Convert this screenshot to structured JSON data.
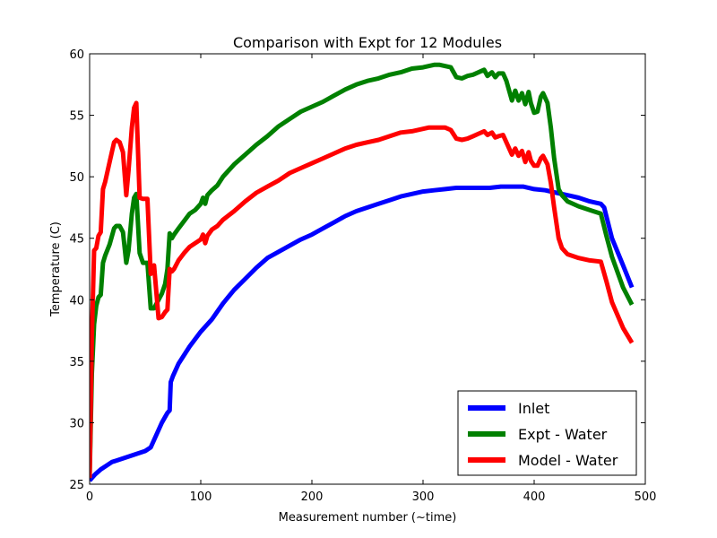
{
  "chart_data": {
    "type": "line",
    "title": "Comparison with Expt for 12 Modules",
    "xlabel": "Measurement number (~time)",
    "ylabel": "Temperature (C)",
    "xlim": [
      0,
      500
    ],
    "ylim": [
      25,
      60
    ],
    "xticks": [
      0,
      100,
      200,
      300,
      400,
      500
    ],
    "yticks": [
      25,
      30,
      35,
      40,
      45,
      50,
      55,
      60
    ],
    "grid": false,
    "legend_position": "lower right",
    "series": [
      {
        "name": "Inlet",
        "color": "#0000ff",
        "x": [
          0,
          2,
          5,
          10,
          15,
          20,
          30,
          40,
          50,
          55,
          60,
          65,
          70,
          72,
          73,
          75,
          80,
          90,
          100,
          110,
          120,
          130,
          140,
          150,
          160,
          170,
          180,
          190,
          200,
          210,
          220,
          230,
          240,
          250,
          260,
          270,
          280,
          290,
          300,
          310,
          320,
          330,
          340,
          350,
          360,
          370,
          380,
          390,
          400,
          410,
          420,
          430,
          440,
          450,
          460,
          463,
          470,
          480,
          488
        ],
        "y": [
          25.3,
          25.5,
          25.8,
          26.2,
          26.5,
          26.8,
          27.1,
          27.4,
          27.7,
          28.0,
          29.0,
          30.0,
          30.8,
          31.0,
          33.3,
          33.8,
          34.8,
          36.2,
          37.4,
          38.4,
          39.7,
          40.8,
          41.7,
          42.6,
          43.4,
          43.9,
          44.4,
          44.9,
          45.3,
          45.8,
          46.3,
          46.8,
          47.2,
          47.5,
          47.8,
          48.1,
          48.4,
          48.6,
          48.8,
          48.9,
          49.0,
          49.1,
          49.1,
          49.1,
          49.1,
          49.2,
          49.2,
          49.2,
          49.0,
          48.9,
          48.7,
          48.5,
          48.3,
          48.0,
          47.8,
          47.5,
          45.0,
          42.8,
          41.0
        ]
      },
      {
        "name": "Expt - Water",
        "color": "#008000",
        "x": [
          0,
          2,
          4,
          6,
          8,
          10,
          12,
          14,
          18,
          22,
          24,
          27,
          30,
          33,
          35,
          38,
          40,
          42,
          45,
          48,
          52,
          55,
          58,
          62,
          65,
          68,
          70,
          72,
          74,
          76,
          80,
          85,
          90,
          95,
          100,
          102,
          104,
          106,
          110,
          115,
          120,
          130,
          140,
          150,
          160,
          170,
          180,
          190,
          200,
          210,
          220,
          230,
          240,
          250,
          260,
          270,
          280,
          290,
          300,
          305,
          310,
          315,
          320,
          325,
          330,
          335,
          340,
          345,
          350,
          355,
          358,
          362,
          365,
          368,
          372,
          375,
          380,
          383,
          386,
          389,
          392,
          395,
          397,
          400,
          403,
          406,
          408,
          412,
          415,
          418,
          422,
          425,
          430,
          440,
          450,
          460,
          465,
          470,
          480,
          488
        ],
        "y": [
          25.5,
          34.0,
          38.0,
          39.5,
          40.2,
          40.4,
          43.0,
          43.6,
          44.5,
          45.8,
          46.0,
          46.0,
          45.5,
          43.0,
          44.0,
          47.0,
          48.3,
          48.6,
          43.8,
          43.0,
          43.0,
          39.3,
          39.3,
          40.0,
          40.5,
          41.3,
          42.5,
          45.4,
          45.0,
          45.3,
          45.8,
          46.4,
          47.0,
          47.3,
          47.8,
          48.3,
          47.8,
          48.5,
          48.9,
          49.3,
          50.0,
          51.0,
          51.8,
          52.6,
          53.3,
          54.1,
          54.7,
          55.3,
          55.7,
          56.1,
          56.6,
          57.1,
          57.5,
          57.8,
          58.0,
          58.3,
          58.5,
          58.8,
          58.9,
          59.0,
          59.1,
          59.1,
          59.0,
          58.9,
          58.1,
          58.0,
          58.2,
          58.3,
          58.5,
          58.7,
          58.2,
          58.5,
          58.1,
          58.4,
          58.4,
          57.8,
          56.2,
          57.0,
          56.2,
          56.8,
          55.9,
          56.9,
          56.0,
          55.2,
          55.3,
          56.5,
          56.8,
          56.0,
          54.0,
          51.5,
          49.0,
          48.5,
          48.0,
          47.6,
          47.3,
          47.0,
          45.2,
          43.5,
          41.0,
          39.6
        ]
      },
      {
        "name": "Model - Water",
        "color": "#ff0000",
        "x": [
          0,
          2,
          4,
          6,
          8,
          10,
          12,
          14,
          18,
          22,
          24,
          27,
          30,
          33,
          35,
          38,
          40,
          42,
          45,
          48,
          52,
          55,
          58,
          62,
          65,
          68,
          70,
          72,
          74,
          76,
          80,
          85,
          90,
          95,
          100,
          102,
          104,
          106,
          110,
          115,
          120,
          130,
          140,
          150,
          160,
          170,
          180,
          190,
          200,
          210,
          220,
          230,
          240,
          250,
          260,
          270,
          280,
          290,
          300,
          305,
          310,
          315,
          320,
          325,
          330,
          335,
          340,
          345,
          350,
          355,
          358,
          362,
          365,
          368,
          372,
          375,
          380,
          383,
          386,
          389,
          392,
          395,
          397,
          400,
          403,
          406,
          408,
          412,
          415,
          418,
          422,
          425,
          430,
          440,
          450,
          460,
          465,
          470,
          480,
          488
        ],
        "y": [
          25.5,
          37.0,
          44.0,
          44.2,
          45.2,
          45.5,
          49.0,
          49.6,
          51.2,
          52.8,
          53.0,
          52.8,
          52.0,
          48.5,
          50.5,
          54.0,
          55.6,
          56.0,
          48.3,
          48.2,
          48.2,
          42.1,
          42.8,
          38.5,
          38.6,
          39.0,
          39.2,
          42.5,
          42.3,
          42.5,
          43.2,
          43.8,
          44.3,
          44.6,
          44.9,
          45.3,
          44.6,
          45.2,
          45.7,
          46.0,
          46.5,
          47.2,
          48.0,
          48.7,
          49.2,
          49.7,
          50.3,
          50.7,
          51.1,
          51.5,
          51.9,
          52.3,
          52.6,
          52.8,
          53.0,
          53.3,
          53.6,
          53.7,
          53.9,
          54.0,
          54.0,
          54.0,
          54.0,
          53.8,
          53.1,
          53.0,
          53.1,
          53.3,
          53.5,
          53.7,
          53.4,
          53.6,
          53.2,
          53.3,
          53.4,
          52.8,
          51.8,
          52.3,
          51.7,
          52.1,
          51.2,
          52.0,
          51.3,
          50.9,
          50.9,
          51.5,
          51.7,
          51.0,
          49.5,
          47.5,
          45.0,
          44.2,
          43.7,
          43.4,
          43.2,
          43.1,
          41.5,
          39.8,
          37.7,
          36.5
        ]
      }
    ]
  }
}
